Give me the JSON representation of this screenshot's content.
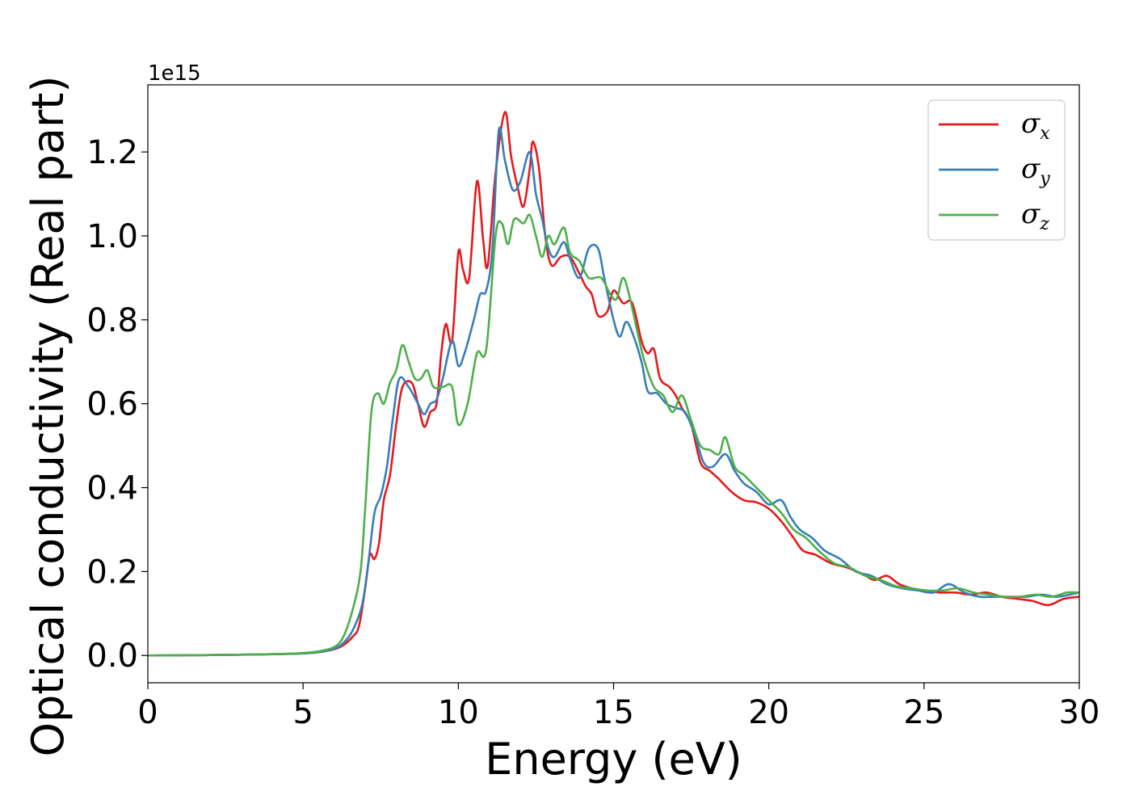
{
  "chart_data": {
    "type": "line",
    "xlabel": "Energy (eV)",
    "ylabel": "Optical conductivity (Real part)",
    "y_offset_label": "1e15",
    "xlim": [
      0,
      30
    ],
    "ylim": [
      -0.065,
      1.36
    ],
    "x_ticks": [
      0,
      5,
      10,
      15,
      20,
      25,
      30
    ],
    "y_ticks": [
      0.0,
      0.2,
      0.4,
      0.6,
      0.8,
      1.0,
      1.2
    ],
    "x_tick_labels": [
      "0",
      "5",
      "10",
      "15",
      "20",
      "25",
      "30"
    ],
    "y_tick_labels": [
      "0.0",
      "0.2",
      "0.4",
      "0.6",
      "0.8",
      "1.0",
      "1.2"
    ],
    "grid": false,
    "legend_position": "top-right",
    "series": [
      {
        "name": "σx",
        "symbol": "σ",
        "subscript": "x",
        "color": "#e41a1c",
        "points": [
          [
            0,
            0
          ],
          [
            2,
            0.001
          ],
          [
            4,
            0.003
          ],
          [
            5,
            0.005
          ],
          [
            5.5,
            0.008
          ],
          [
            6,
            0.015
          ],
          [
            6.3,
            0.025
          ],
          [
            6.6,
            0.045
          ],
          [
            6.8,
            0.07
          ],
          [
            7.0,
            0.16
          ],
          [
            7.15,
            0.24
          ],
          [
            7.3,
            0.23
          ],
          [
            7.45,
            0.27
          ],
          [
            7.6,
            0.37
          ],
          [
            7.8,
            0.43
          ],
          [
            8.0,
            0.55
          ],
          [
            8.2,
            0.64
          ],
          [
            8.5,
            0.65
          ],
          [
            8.7,
            0.6
          ],
          [
            8.9,
            0.545
          ],
          [
            9.1,
            0.58
          ],
          [
            9.3,
            0.6
          ],
          [
            9.45,
            0.72
          ],
          [
            9.6,
            0.79
          ],
          [
            9.8,
            0.75
          ],
          [
            10.0,
            0.96
          ],
          [
            10.15,
            0.92
          ],
          [
            10.35,
            0.9
          ],
          [
            10.6,
            1.13
          ],
          [
            10.8,
            0.99
          ],
          [
            10.95,
            0.93
          ],
          [
            11.2,
            1.15
          ],
          [
            11.5,
            1.295
          ],
          [
            11.7,
            1.19
          ],
          [
            11.9,
            1.12
          ],
          [
            12.1,
            1.07
          ],
          [
            12.3,
            1.16
          ],
          [
            12.4,
            1.225
          ],
          [
            12.6,
            1.16
          ],
          [
            12.8,
            1.0
          ],
          [
            13.0,
            0.93
          ],
          [
            13.3,
            0.95
          ],
          [
            13.6,
            0.95
          ],
          [
            13.9,
            0.91
          ],
          [
            14.1,
            0.88
          ],
          [
            14.3,
            0.86
          ],
          [
            14.5,
            0.81
          ],
          [
            14.8,
            0.82
          ],
          [
            15.0,
            0.87
          ],
          [
            15.3,
            0.84
          ],
          [
            15.6,
            0.84
          ],
          [
            15.9,
            0.75
          ],
          [
            16.1,
            0.72
          ],
          [
            16.3,
            0.73
          ],
          [
            16.5,
            0.66
          ],
          [
            16.8,
            0.64
          ],
          [
            17.0,
            0.62
          ],
          [
            17.2,
            0.59
          ],
          [
            17.5,
            0.55
          ],
          [
            17.8,
            0.46
          ],
          [
            18.1,
            0.44
          ],
          [
            18.4,
            0.42
          ],
          [
            18.8,
            0.39
          ],
          [
            19.2,
            0.37
          ],
          [
            19.6,
            0.365
          ],
          [
            20.0,
            0.35
          ],
          [
            20.4,
            0.32
          ],
          [
            20.8,
            0.28
          ],
          [
            21.1,
            0.25
          ],
          [
            21.5,
            0.24
          ],
          [
            22.0,
            0.22
          ],
          [
            22.5,
            0.21
          ],
          [
            23.0,
            0.195
          ],
          [
            23.4,
            0.18
          ],
          [
            23.8,
            0.19
          ],
          [
            24.2,
            0.17
          ],
          [
            24.6,
            0.16
          ],
          [
            25.0,
            0.155
          ],
          [
            25.5,
            0.15
          ],
          [
            26.0,
            0.15
          ],
          [
            26.5,
            0.145
          ],
          [
            27.0,
            0.15
          ],
          [
            27.5,
            0.14
          ],
          [
            28.0,
            0.135
          ],
          [
            28.5,
            0.13
          ],
          [
            29.0,
            0.12
          ],
          [
            29.5,
            0.135
          ],
          [
            30,
            0.14
          ]
        ]
      },
      {
        "name": "σy",
        "symbol": "σ",
        "subscript": "y",
        "color": "#377eb8",
        "points": [
          [
            0,
            0
          ],
          [
            2,
            0.001
          ],
          [
            4,
            0.003
          ],
          [
            5,
            0.005
          ],
          [
            5.5,
            0.008
          ],
          [
            6,
            0.016
          ],
          [
            6.3,
            0.03
          ],
          [
            6.6,
            0.06
          ],
          [
            6.9,
            0.12
          ],
          [
            7.1,
            0.22
          ],
          [
            7.3,
            0.34
          ],
          [
            7.5,
            0.38
          ],
          [
            7.7,
            0.45
          ],
          [
            7.9,
            0.57
          ],
          [
            8.1,
            0.66
          ],
          [
            8.4,
            0.64
          ],
          [
            8.7,
            0.6
          ],
          [
            8.9,
            0.575
          ],
          [
            9.1,
            0.6
          ],
          [
            9.3,
            0.61
          ],
          [
            9.5,
            0.66
          ],
          [
            9.8,
            0.75
          ],
          [
            10.0,
            0.69
          ],
          [
            10.2,
            0.72
          ],
          [
            10.5,
            0.8
          ],
          [
            10.7,
            0.86
          ],
          [
            10.9,
            0.87
          ],
          [
            11.1,
            0.97
          ],
          [
            11.3,
            1.25
          ],
          [
            11.5,
            1.18
          ],
          [
            11.75,
            1.11
          ],
          [
            12.0,
            1.13
          ],
          [
            12.3,
            1.2
          ],
          [
            12.5,
            1.1
          ],
          [
            12.7,
            1.04
          ],
          [
            12.9,
            0.97
          ],
          [
            13.1,
            0.95
          ],
          [
            13.4,
            0.985
          ],
          [
            13.6,
            0.945
          ],
          [
            13.9,
            0.9
          ],
          [
            14.2,
            0.97
          ],
          [
            14.5,
            0.97
          ],
          [
            14.7,
            0.9
          ],
          [
            15.0,
            0.8
          ],
          [
            15.2,
            0.76
          ],
          [
            15.4,
            0.795
          ],
          [
            15.6,
            0.77
          ],
          [
            15.9,
            0.7
          ],
          [
            16.1,
            0.63
          ],
          [
            16.4,
            0.625
          ],
          [
            16.7,
            0.6
          ],
          [
            17.0,
            0.59
          ],
          [
            17.3,
            0.58
          ],
          [
            17.6,
            0.53
          ],
          [
            17.9,
            0.46
          ],
          [
            18.2,
            0.45
          ],
          [
            18.6,
            0.48
          ],
          [
            18.9,
            0.44
          ],
          [
            19.2,
            0.41
          ],
          [
            19.6,
            0.39
          ],
          [
            20.0,
            0.36
          ],
          [
            20.4,
            0.37
          ],
          [
            20.7,
            0.33
          ],
          [
            21.0,
            0.3
          ],
          [
            21.4,
            0.28
          ],
          [
            21.8,
            0.25
          ],
          [
            22.3,
            0.23
          ],
          [
            22.8,
            0.2
          ],
          [
            23.3,
            0.19
          ],
          [
            23.8,
            0.17
          ],
          [
            24.3,
            0.16
          ],
          [
            24.8,
            0.155
          ],
          [
            25.3,
            0.15
          ],
          [
            25.8,
            0.17
          ],
          [
            26.3,
            0.15
          ],
          [
            26.8,
            0.14
          ],
          [
            27.3,
            0.14
          ],
          [
            27.8,
            0.14
          ],
          [
            28.3,
            0.14
          ],
          [
            28.8,
            0.145
          ],
          [
            29.3,
            0.14
          ],
          [
            30,
            0.15
          ]
        ]
      },
      {
        "name": "σz",
        "symbol": "σ",
        "subscript": "z",
        "color": "#4daf4a",
        "points": [
          [
            0,
            0
          ],
          [
            2,
            0.001
          ],
          [
            4,
            0.003
          ],
          [
            5,
            0.006
          ],
          [
            5.5,
            0.01
          ],
          [
            6,
            0.02
          ],
          [
            6.3,
            0.045
          ],
          [
            6.6,
            0.11
          ],
          [
            6.85,
            0.2
          ],
          [
            7.0,
            0.35
          ],
          [
            7.2,
            0.58
          ],
          [
            7.4,
            0.625
          ],
          [
            7.6,
            0.6
          ],
          [
            7.8,
            0.65
          ],
          [
            8.0,
            0.68
          ],
          [
            8.2,
            0.74
          ],
          [
            8.4,
            0.7
          ],
          [
            8.6,
            0.66
          ],
          [
            8.8,
            0.66
          ],
          [
            9.0,
            0.68
          ],
          [
            9.2,
            0.64
          ],
          [
            9.5,
            0.64
          ],
          [
            9.8,
            0.64
          ],
          [
            10.0,
            0.55
          ],
          [
            10.3,
            0.6
          ],
          [
            10.6,
            0.72
          ],
          [
            10.9,
            0.73
          ],
          [
            11.2,
            1.0
          ],
          [
            11.4,
            1.03
          ],
          [
            11.6,
            0.98
          ],
          [
            11.8,
            1.04
          ],
          [
            12.1,
            1.03
          ],
          [
            12.3,
            1.05
          ],
          [
            12.5,
            1.0
          ],
          [
            12.7,
            0.95
          ],
          [
            12.9,
            1.0
          ],
          [
            13.1,
            0.98
          ],
          [
            13.4,
            1.02
          ],
          [
            13.6,
            0.96
          ],
          [
            13.9,
            0.94
          ],
          [
            14.2,
            0.9
          ],
          [
            14.6,
            0.9
          ],
          [
            14.9,
            0.86
          ],
          [
            15.1,
            0.85
          ],
          [
            15.3,
            0.9
          ],
          [
            15.5,
            0.86
          ],
          [
            15.8,
            0.76
          ],
          [
            16.0,
            0.7
          ],
          [
            16.3,
            0.64
          ],
          [
            16.6,
            0.62
          ],
          [
            16.9,
            0.58
          ],
          [
            17.2,
            0.62
          ],
          [
            17.5,
            0.56
          ],
          [
            17.8,
            0.5
          ],
          [
            18.1,
            0.49
          ],
          [
            18.4,
            0.48
          ],
          [
            18.6,
            0.52
          ],
          [
            18.9,
            0.45
          ],
          [
            19.2,
            0.43
          ],
          [
            19.6,
            0.4
          ],
          [
            20.0,
            0.37
          ],
          [
            20.4,
            0.34
          ],
          [
            20.8,
            0.3
          ],
          [
            21.2,
            0.28
          ],
          [
            21.6,
            0.25
          ],
          [
            22.1,
            0.22
          ],
          [
            22.6,
            0.21
          ],
          [
            23.1,
            0.19
          ],
          [
            23.6,
            0.18
          ],
          [
            24.1,
            0.165
          ],
          [
            24.6,
            0.16
          ],
          [
            25.1,
            0.155
          ],
          [
            25.6,
            0.155
          ],
          [
            26.1,
            0.16
          ],
          [
            26.6,
            0.15
          ],
          [
            27.1,
            0.145
          ],
          [
            27.6,
            0.14
          ],
          [
            28.1,
            0.14
          ],
          [
            28.6,
            0.145
          ],
          [
            29.1,
            0.14
          ],
          [
            29.6,
            0.15
          ],
          [
            30,
            0.15
          ]
        ]
      }
    ]
  }
}
